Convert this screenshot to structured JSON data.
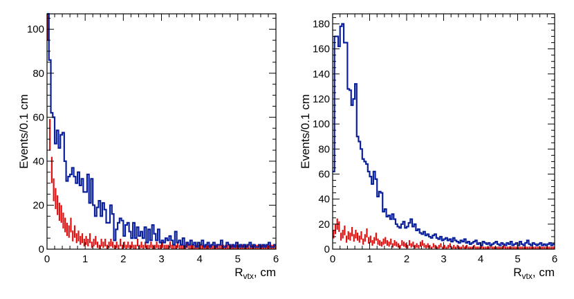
{
  "colors": {
    "blue": "#0a1f9c",
    "red": "#e01010",
    "axis": "#000000"
  },
  "chart_data": [
    {
      "type": "histogram",
      "xlabel_main": "R",
      "xlabel_sub": "vtx",
      "xlabel_tail": ", cm",
      "ylabel": "Events/0.1 cm",
      "xlim": [
        0,
        6
      ],
      "ylim": [
        0,
        107
      ],
      "xticks": [
        "0",
        "1",
        "2",
        "3",
        "4",
        "5",
        "6"
      ],
      "yticks": [
        "0",
        "20",
        "40",
        "60",
        "80",
        "100"
      ],
      "ytick_values": [
        0,
        20,
        40,
        60,
        80,
        100
      ],
      "bin_width": 0.05,
      "series": [
        {
          "style": "step",
          "color": "blue",
          "values": [
            107,
            86,
            62,
            60,
            48,
            54,
            46,
            52,
            53,
            40,
            31,
            33,
            34,
            37,
            33,
            30,
            35,
            29,
            32,
            26,
            26,
            34,
            21,
            32,
            20,
            15,
            19,
            22,
            15,
            21,
            18,
            12,
            12,
            20,
            16,
            4,
            9,
            12,
            14,
            13,
            6,
            11,
            12,
            8,
            5,
            12,
            5,
            10,
            6,
            8,
            5,
            10,
            3,
            9,
            4,
            11,
            7,
            4,
            9,
            3,
            4,
            3,
            5,
            4,
            6,
            4,
            2,
            8,
            3,
            4,
            2,
            5,
            1,
            3,
            2,
            4,
            2,
            3,
            1,
            3,
            2,
            4,
            1,
            2,
            3,
            1,
            2,
            3,
            1,
            2,
            2,
            4,
            1,
            1,
            3,
            2,
            1,
            2,
            1,
            3,
            1,
            2,
            1,
            2,
            1,
            2,
            3,
            1,
            2,
            1,
            1,
            2,
            1,
            2,
            1,
            2,
            3,
            1,
            1,
            2
          ]
        },
        {
          "style": "points",
          "color": "red",
          "values": [
            105,
            52,
            36,
            27,
            23,
            20,
            17,
            16,
            13,
            11,
            9,
            8,
            11,
            6,
            8,
            5,
            6,
            4,
            5,
            3,
            4,
            3,
            5,
            2,
            3,
            4,
            2,
            1,
            3,
            2,
            3,
            1,
            2,
            3,
            2,
            1,
            2,
            1,
            3,
            1,
            2,
            1,
            2,
            1,
            2,
            1,
            1,
            3,
            1,
            2,
            1,
            2,
            1,
            1,
            2,
            1,
            1,
            2,
            1,
            1,
            2,
            1,
            1,
            1,
            2,
            1,
            1,
            1,
            2,
            1,
            1,
            1,
            1,
            2,
            1,
            1,
            1,
            1,
            1,
            1,
            1,
            1,
            1,
            1,
            1,
            1,
            1,
            1,
            1,
            1,
            1,
            1,
            1,
            1,
            1,
            1,
            1,
            1,
            1,
            1,
            1,
            1,
            1,
            1,
            1,
            1,
            1,
            1,
            1,
            1,
            1,
            1,
            1,
            1,
            1,
            1,
            1,
            1,
            1,
            1
          ]
        }
      ]
    },
    {
      "type": "histogram",
      "xlabel_main": "R",
      "xlabel_sub": "vtx",
      "xlabel_tail": ", cm",
      "ylabel": "Events/0.1 cm",
      "xlim": [
        0,
        6
      ],
      "ylim": [
        0,
        188
      ],
      "xticks": [
        "0",
        "1",
        "2",
        "3",
        "4",
        "5",
        "6"
      ],
      "yticks": [
        "0",
        "20",
        "40",
        "60",
        "80",
        "100",
        "120",
        "140",
        "160",
        "180"
      ],
      "ytick_values": [
        0,
        20,
        40,
        60,
        80,
        100,
        120,
        140,
        160,
        180
      ],
      "bin_width": 0.05,
      "series": [
        {
          "style": "step",
          "color": "blue",
          "values": [
            62,
            170,
            170,
            162,
            178,
            180,
            165,
            165,
            128,
            127,
            115,
            120,
            132,
            90,
            86,
            80,
            72,
            70,
            68,
            62,
            58,
            52,
            62,
            56,
            42,
            46,
            45,
            30,
            32,
            26,
            27,
            24,
            28,
            24,
            20,
            18,
            17,
            20,
            22,
            17,
            18,
            21,
            24,
            18,
            20,
            15,
            16,
            13,
            12,
            14,
            11,
            12,
            10,
            9,
            11,
            12,
            9,
            8,
            10,
            7,
            8,
            9,
            7,
            8,
            6,
            9,
            7,
            6,
            5,
            7,
            6,
            8,
            5,
            6,
            4,
            5,
            6,
            7,
            4,
            5,
            3,
            6,
            5,
            4,
            5,
            3,
            4,
            5,
            6,
            4,
            3,
            5,
            4,
            3,
            5,
            4,
            6,
            3,
            4,
            5,
            3,
            6,
            4,
            3,
            5,
            7,
            4,
            3,
            5,
            4,
            3,
            4,
            5,
            3,
            4,
            3,
            4,
            5,
            3,
            4
          ]
        },
        {
          "style": "points",
          "color": "red",
          "values": [
            12,
            16,
            20,
            18,
            10,
            12,
            15,
            8,
            11,
            10,
            14,
            9,
            12,
            10,
            8,
            11,
            6,
            9,
            13,
            7,
            8,
            5,
            7,
            10,
            6,
            5,
            4,
            6,
            7,
            5,
            4,
            6,
            3,
            5,
            4,
            3,
            2,
            5,
            4,
            3,
            2,
            5,
            3,
            4,
            2,
            3,
            2,
            4,
            5,
            3,
            2,
            3,
            2,
            1,
            3,
            2,
            1,
            2,
            3,
            1,
            2,
            1,
            2,
            3,
            1,
            2,
            1,
            2,
            1,
            1,
            2,
            1,
            2,
            1,
            1,
            1,
            2,
            1,
            1,
            1,
            2,
            1,
            1,
            1,
            1,
            2,
            1,
            1,
            1,
            1,
            1,
            1,
            2,
            1,
            1,
            1,
            1,
            1,
            1,
            1,
            1,
            1,
            1,
            1,
            1,
            1,
            1,
            1,
            1,
            1,
            1,
            1,
            1,
            1,
            1,
            1,
            1,
            1,
            1,
            1
          ]
        }
      ]
    }
  ]
}
